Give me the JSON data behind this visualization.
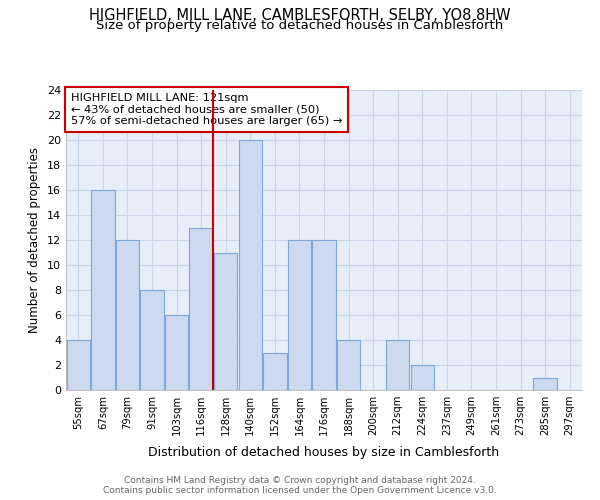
{
  "title": "HIGHFIELD, MILL LANE, CAMBLESFORTH, SELBY, YO8 8HW",
  "subtitle": "Size of property relative to detached houses in Camblesforth",
  "xlabel": "Distribution of detached houses by size in Camblesforth",
  "ylabel": "Number of detached properties",
  "categories": [
    "55sqm",
    "67sqm",
    "79sqm",
    "91sqm",
    "103sqm",
    "116sqm",
    "128sqm",
    "140sqm",
    "152sqm",
    "164sqm",
    "176sqm",
    "188sqm",
    "200sqm",
    "212sqm",
    "224sqm",
    "237sqm",
    "249sqm",
    "261sqm",
    "273sqm",
    "285sqm",
    "297sqm"
  ],
  "values": [
    4,
    16,
    12,
    8,
    6,
    13,
    11,
    20,
    3,
    12,
    12,
    4,
    0,
    4,
    2,
    0,
    0,
    0,
    0,
    1,
    0
  ],
  "bar_color": "#ccd9ee",
  "bar_edge_color": "#7da7d9",
  "annotation_title": "HIGHFIELD MILL LANE: 121sqm",
  "annotation_line1": "← 43% of detached houses are smaller (50)",
  "annotation_line2": "57% of semi-detached houses are larger (65) →",
  "annotation_box_color": "#ffffff",
  "annotation_box_edge": "#cc0000",
  "vline_color": "#cc0000",
  "ylim": [
    0,
    24
  ],
  "yticks": [
    0,
    2,
    4,
    6,
    8,
    10,
    12,
    14,
    16,
    18,
    20,
    22,
    24
  ],
  "footer_line1": "Contains HM Land Registry data © Crown copyright and database right 2024.",
  "footer_line2": "Contains public sector information licensed under the Open Government Licence v3.0.",
  "title_fontsize": 10.5,
  "subtitle_fontsize": 9.5,
  "xlabel_fontsize": 9,
  "ylabel_fontsize": 8.5,
  "grid_color": "#c8d4e8",
  "bg_color": "#e8eef8"
}
